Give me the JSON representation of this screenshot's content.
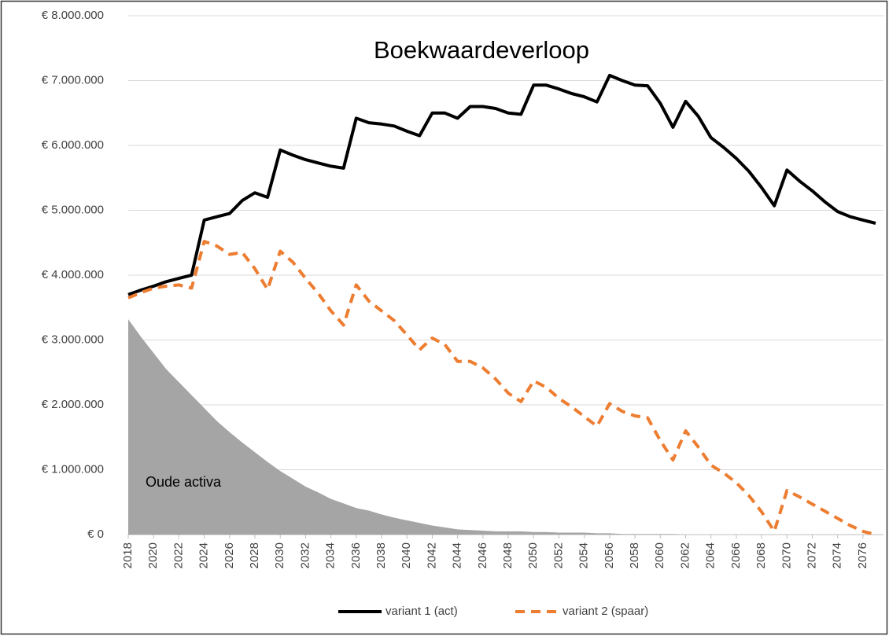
{
  "chart_data": {
    "type": "line",
    "title": "Boekwaardeverloop",
    "x": [
      2018,
      2019,
      2020,
      2021,
      2022,
      2023,
      2024,
      2025,
      2026,
      2027,
      2028,
      2029,
      2030,
      2031,
      2032,
      2033,
      2034,
      2035,
      2036,
      2037,
      2038,
      2039,
      2040,
      2041,
      2042,
      2043,
      2044,
      2045,
      2046,
      2047,
      2048,
      2049,
      2050,
      2051,
      2052,
      2053,
      2054,
      2055,
      2056,
      2057,
      2058,
      2059,
      2060,
      2061,
      2062,
      2063,
      2064,
      2065,
      2066,
      2067,
      2068,
      2069,
      2070,
      2071,
      2072,
      2073,
      2074,
      2075,
      2076,
      2077
    ],
    "xlim": [
      2018,
      2077
    ],
    "xticks": [
      2018,
      2020,
      2022,
      2024,
      2026,
      2028,
      2030,
      2032,
      2034,
      2036,
      2038,
      2040,
      2042,
      2044,
      2046,
      2048,
      2050,
      2052,
      2054,
      2056,
      2058,
      2060,
      2062,
      2064,
      2066,
      2068,
      2070,
      2072,
      2074,
      2076
    ],
    "ylim": [
      0,
      8000000
    ],
    "yticks": [
      {
        "value": 0,
        "label": "€ 0"
      },
      {
        "value": 1000000,
        "label": "€ 1.000.000"
      },
      {
        "value": 2000000,
        "label": "€ 2.000.000"
      },
      {
        "value": 3000000,
        "label": "€ 3.000.000"
      },
      {
        "value": 4000000,
        "label": "€ 4.000.000"
      },
      {
        "value": 5000000,
        "label": "€ 5.000.000"
      },
      {
        "value": 6000000,
        "label": "€ 6.000.000"
      },
      {
        "value": 7000000,
        "label": "€ 7.000.000"
      },
      {
        "value": 8000000,
        "label": "€ 8.000.000"
      }
    ],
    "grid": true,
    "legend": "bottom",
    "area": {
      "label": "Oude activa",
      "color": "#a5a5a5",
      "values": [
        3320000,
        3050000,
        2800000,
        2550000,
        2350000,
        2150000,
        1950000,
        1750000,
        1580000,
        1420000,
        1270000,
        1120000,
        980000,
        860000,
        740000,
        650000,
        550000,
        480000,
        410000,
        370000,
        310000,
        260000,
        220000,
        180000,
        140000,
        110000,
        80000,
        70000,
        60000,
        50000,
        50000,
        50000,
        40000,
        40000,
        30000,
        30000,
        30000,
        20000,
        20000,
        10000,
        10000,
        10000,
        10000,
        10000,
        0,
        0,
        0,
        0,
        0,
        0,
        0,
        0,
        0,
        0,
        0,
        0,
        0,
        0,
        0,
        0
      ]
    },
    "series": [
      {
        "name": "variant 1 (act)",
        "color": "#000000",
        "line_style": "solid",
        "values": [
          3700000,
          3770000,
          3830000,
          3900000,
          3950000,
          4000000,
          4850000,
          4900000,
          4950000,
          5150000,
          5270000,
          5200000,
          5930000,
          5850000,
          5780000,
          5730000,
          5680000,
          5650000,
          6420000,
          6350000,
          6330000,
          6300000,
          6220000,
          6150000,
          6500000,
          6500000,
          6420000,
          6600000,
          6600000,
          6570000,
          6500000,
          6480000,
          6930000,
          6930000,
          6870000,
          6800000,
          6750000,
          6670000,
          7080000,
          7000000,
          6930000,
          6920000,
          6650000,
          6280000,
          6680000,
          6450000,
          6120000,
          5970000,
          5800000,
          5600000,
          5350000,
          5070000,
          5620000,
          5450000,
          5300000,
          5130000,
          4980000,
          4900000,
          4850000,
          4800000
        ]
      },
      {
        "name": "variant 2 (spaar)",
        "color": "#ed7d31",
        "line_style": "dashed",
        "values": [
          3650000,
          3730000,
          3800000,
          3830000,
          3850000,
          3800000,
          4520000,
          4450000,
          4320000,
          4350000,
          4100000,
          3780000,
          4370000,
          4200000,
          3950000,
          3720000,
          3450000,
          3230000,
          3850000,
          3600000,
          3450000,
          3300000,
          3080000,
          2850000,
          3030000,
          2930000,
          2670000,
          2670000,
          2570000,
          2400000,
          2180000,
          2050000,
          2370000,
          2270000,
          2100000,
          1970000,
          1820000,
          1670000,
          2020000,
          1900000,
          1830000,
          1800000,
          1450000,
          1150000,
          1600000,
          1350000,
          1070000,
          950000,
          800000,
          600000,
          350000,
          50000,
          680000,
          580000,
          470000,
          360000,
          250000,
          140000,
          50000,
          0
        ]
      }
    ]
  }
}
